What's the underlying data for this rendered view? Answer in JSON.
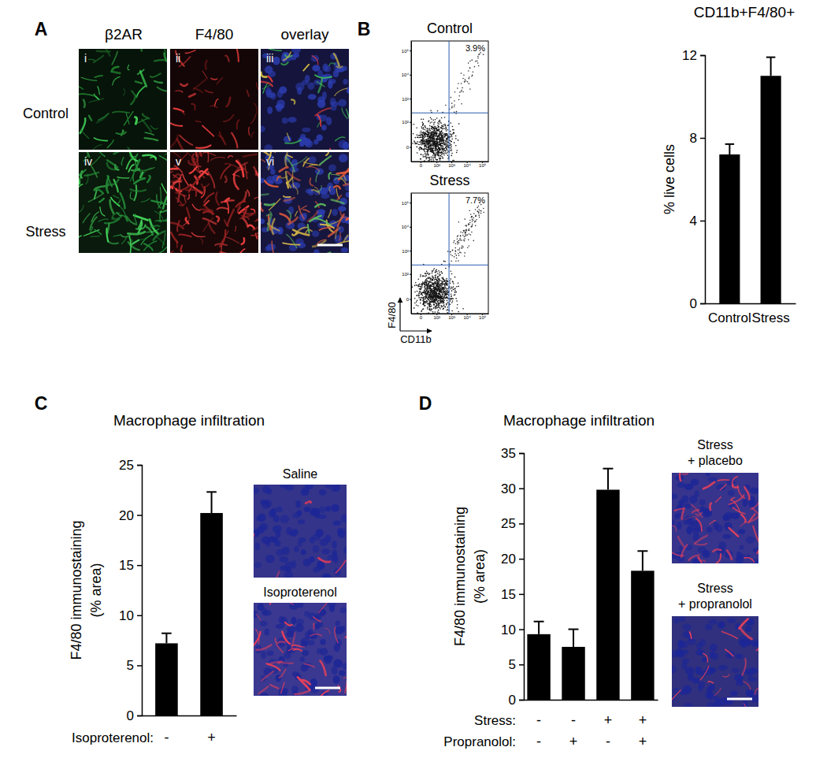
{
  "panel_labels": [
    "A",
    "B",
    "C",
    "D"
  ],
  "panel_a": {
    "columns": [
      "β2AR",
      "F4/80",
      "overlay"
    ],
    "rows": [
      "Control",
      "Stress"
    ],
    "image_labels": [
      [
        "i",
        "ii",
        "iii"
      ],
      [
        "iv",
        "v",
        "vi"
      ]
    ]
  },
  "panel_c_images": [
    "Saline",
    "Isoproterenol"
  ],
  "panel_d_images": [
    [
      "Stress",
      "+ placebo"
    ],
    [
      "Stress",
      "+ propranolol"
    ]
  ],
  "chart_data": [
    {
      "type": "scatter",
      "title": "Control",
      "log": true,
      "xlim": [
        -30,
        250000
      ],
      "ylim": [
        -30,
        250000
      ],
      "xticks": [
        0,
        {
          "value": 100,
          "label": "10²"
        },
        {
          "value": 1000,
          "label": "10³"
        },
        {
          "value": 10000,
          "label": "10⁴"
        },
        {
          "value": 100000,
          "label": "10⁵"
        }
      ],
      "yticks": [
        0,
        {
          "value": 100,
          "label": "10²"
        },
        {
          "value": 1000,
          "label": "10³"
        },
        {
          "value": 10000,
          "label": "10⁴"
        },
        {
          "value": 100000,
          "label": "10⁵"
        }
      ],
      "gate": {
        "x": 700,
        "y": 250
      },
      "gate_value": 3.9,
      "gate_value_label": "3.9%"
    },
    {
      "type": "scatter",
      "title": "Stress",
      "log": true,
      "x_label": "CD11b",
      "y_label": "F4/80",
      "xlim": [
        -30,
        250000
      ],
      "ylim": [
        -30,
        250000
      ],
      "xticks": [
        0,
        {
          "value": 100,
          "label": "10²"
        },
        {
          "value": 1000,
          "label": "10³"
        },
        {
          "value": 10000,
          "label": "10⁴"
        },
        {
          "value": 100000,
          "label": "10⁵"
        }
      ],
      "yticks": [
        0,
        {
          "value": 100,
          "label": "10²"
        },
        {
          "value": 1000,
          "label": "10³"
        },
        {
          "value": 10000,
          "label": "10⁴"
        },
        {
          "value": 100000,
          "label": "10⁵"
        }
      ],
      "gate": {
        "x": 700,
        "y": 250
      },
      "gate_value": 7.7,
      "gate_value_label": "7.7%"
    },
    {
      "type": "bar",
      "title": "CD11b+F4/80+",
      "y_label": "% live cells",
      "categories": [
        "Control",
        "Stress"
      ],
      "values": [
        7.2,
        11.0
      ],
      "errors": [
        0.5,
        0.9
      ],
      "color": "#000000",
      "ylim": [
        0,
        12
      ],
      "yticks": [
        0,
        4,
        8,
        12
      ]
    },
    {
      "type": "bar",
      "title": "Macrophage infiltration",
      "y_label": [
        "F4/80 immunostaining",
        "(% area)"
      ],
      "x_rows": [
        {
          "label": "Isoproterenol:",
          "values": [
            "-",
            "+"
          ]
        }
      ],
      "values": [
        7.2,
        20.2
      ],
      "errors": [
        1.0,
        2.1
      ],
      "color": "#000000",
      "ylim": [
        0,
        25
      ],
      "yticks": [
        0,
        5,
        10,
        15,
        20,
        25
      ]
    },
    {
      "type": "bar",
      "title": "Macrophage infiltration",
      "y_label": [
        "F4/80 immunostaining",
        "(% area)"
      ],
      "x_rows": [
        {
          "label": "Stress:",
          "values": [
            "-",
            "-",
            "+",
            "+"
          ]
        },
        {
          "label": "Propranolol:",
          "values": [
            "-",
            "+",
            "-",
            "+"
          ]
        }
      ],
      "values": [
        9.3,
        7.5,
        29.8,
        18.3
      ],
      "errors": [
        1.8,
        2.5,
        3.0,
        2.8
      ],
      "color": "#000000",
      "ylim": [
        0,
        35
      ],
      "yticks": [
        0,
        5,
        10,
        15,
        20,
        25,
        30,
        35
      ]
    }
  ]
}
